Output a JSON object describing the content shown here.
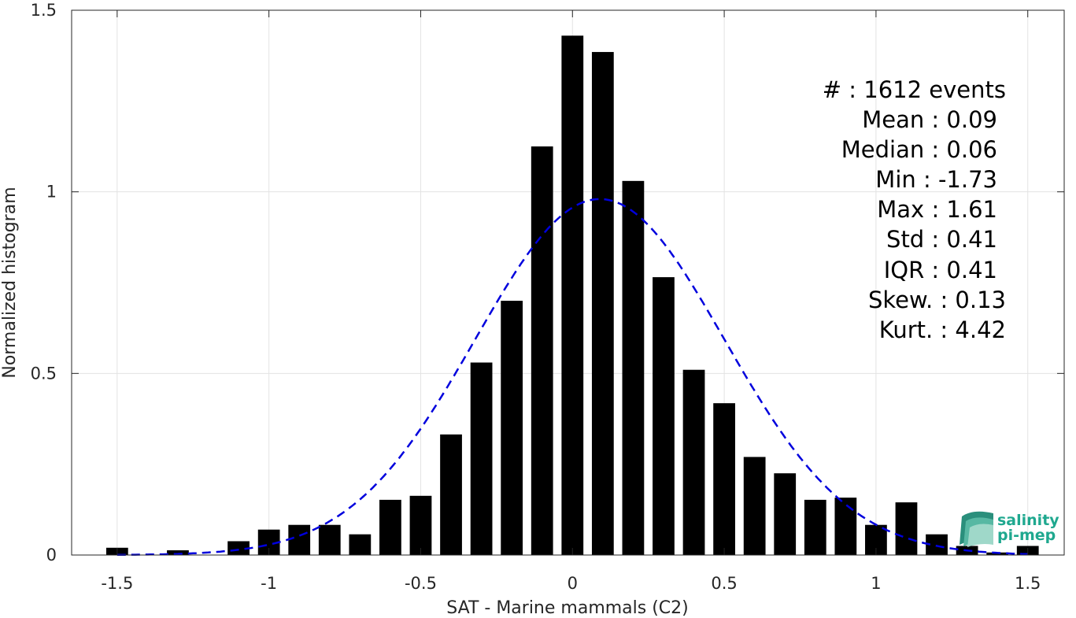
{
  "chart_data": {
    "type": "bar",
    "xlabel": "SAT - Marine mammals (C2)",
    "ylabel": "Normalized histogram",
    "xlim": [
      -1.65,
      1.62
    ],
    "ylim": [
      0,
      1.5
    ],
    "xticks": [
      -1.5,
      -1,
      -0.5,
      0,
      0.5,
      1,
      1.5
    ],
    "xtick_labels": [
      "-1.5",
      "-1",
      "-0.5",
      "0",
      "0.5",
      "1",
      "1.5"
    ],
    "yticks": [
      0,
      0.5,
      1,
      1.5
    ],
    "ytick_labels": [
      "0",
      "0.5",
      "1",
      "1.5"
    ],
    "grid": true,
    "bar_color": "#000000",
    "bin_width": 0.1,
    "series": [
      {
        "x": [
          -1.5,
          -1.3,
          -1.1,
          -1.0,
          -0.9,
          -0.8,
          -0.7,
          -0.6,
          -0.5,
          -0.4,
          -0.3,
          -0.2,
          -0.1,
          0.0,
          0.1,
          0.2,
          0.3,
          0.4,
          0.5,
          0.6,
          0.7,
          0.8,
          0.9,
          1.0,
          1.1,
          1.2,
          1.3,
          1.4,
          1.5
        ],
        "values": [
          0.02,
          0.013,
          0.038,
          0.07,
          0.083,
          0.083,
          0.057,
          0.152,
          0.163,
          0.332,
          0.53,
          0.7,
          1.125,
          1.43,
          1.385,
          1.03,
          0.765,
          0.51,
          0.418,
          0.27,
          0.225,
          0.152,
          0.158,
          0.083,
          0.145,
          0.057,
          0.025,
          0.007,
          0.025
        ]
      }
    ],
    "fit_curve": {
      "style": "dashed",
      "color": "#0000dd",
      "kind": "normal",
      "mean": 0.09,
      "std": 0.41
    },
    "stats": {
      "lines": [
        "#  : 1612 events",
        "Mean : 0.09",
        "Median : 0.06",
        "Min : -1.73",
        "Max : 1.61",
        "Std : 0.41",
        "IQR : 0.41",
        "Skew. : 0.13",
        "Kurt. : 4.42"
      ]
    },
    "logo": {
      "line1": "salinity",
      "line2": "pi-mep",
      "color": "#1fa88f"
    }
  }
}
